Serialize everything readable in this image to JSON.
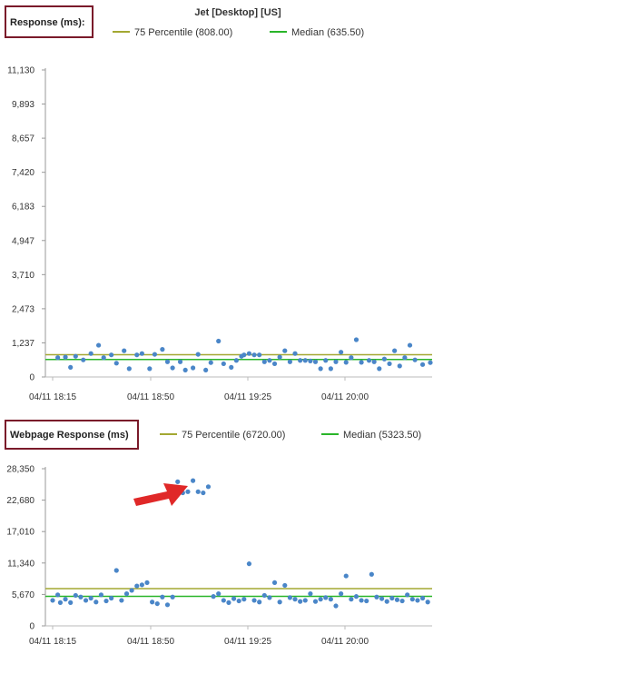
{
  "title": "Jet [Desktop] [US]",
  "colors": {
    "percentile": "#a3a832",
    "median": "#2ab52a",
    "point": "#4a86c8",
    "highlight_box": "#7a1a2a",
    "arrow": "#e02828"
  },
  "chart_data": [
    {
      "type": "scatter",
      "panel_label": "Response (ms):",
      "legend": [
        {
          "label": "75 Percentile (808.00)",
          "value": 808.0,
          "color_key": "percentile"
        },
        {
          "label": "Median (635.50)",
          "value": 635.5,
          "color_key": "median"
        }
      ],
      "ylim": [
        0,
        11130
      ],
      "yticks": [
        "0",
        "1,237",
        "2,473",
        "3,710",
        "4,947",
        "6,183",
        "7,420",
        "8,657",
        "9,893",
        "11,130"
      ],
      "xticks": [
        "04/11 18:15",
        "04/11 18:50",
        "04/11 19:25",
        "04/11 20:00"
      ],
      "xrange_minutes": [
        0,
        148
      ],
      "points_x": [
        2,
        5,
        7,
        9,
        12,
        15,
        18,
        20,
        23,
        25,
        28,
        30,
        33,
        35,
        38,
        40,
        43,
        45,
        47,
        50,
        52,
        55,
        57,
        60,
        62,
        65,
        67,
        70,
        72,
        74,
        75,
        77,
        79,
        81,
        83,
        85,
        87,
        89,
        91,
        93,
        95,
        97,
        99,
        101,
        103,
        105,
        107,
        109,
        111,
        113,
        115,
        117,
        119,
        121,
        124,
        126,
        128,
        130,
        132,
        134,
        136,
        138,
        140,
        142,
        145,
        148
      ],
      "points_y": [
        700,
        720,
        350,
        750,
        620,
        850,
        1150,
        700,
        800,
        500,
        950,
        300,
        800,
        850,
        300,
        820,
        1000,
        550,
        330,
        550,
        250,
        330,
        820,
        250,
        520,
        1300,
        480,
        350,
        600,
        750,
        800,
        850,
        800,
        800,
        550,
        600,
        480,
        720,
        950,
        550,
        850,
        600,
        600,
        580,
        550,
        300,
        600,
        300,
        550,
        900,
        530,
        700,
        1350,
        530,
        600,
        550,
        300,
        650,
        480,
        950,
        400,
        700,
        1150,
        620,
        450,
        520
      ]
    },
    {
      "type": "scatter",
      "panel_label": "Webpage Response (ms)",
      "legend": [
        {
          "label": "75 Percentile (6720.00)",
          "value": 6720.0,
          "color_key": "percentile"
        },
        {
          "label": "Median (5323.50)",
          "value": 5323.5,
          "color_key": "median"
        }
      ],
      "ylim": [
        0,
        28350
      ],
      "yticks": [
        "0",
        "5,670",
        "11,340",
        "17,010",
        "22,680",
        "28,350"
      ],
      "xticks": [
        "04/11 18:15",
        "04/11 18:50",
        "04/11 19:25",
        "04/11 20:00"
      ],
      "xrange_minutes": [
        0,
        148
      ],
      "points_x": [
        0,
        2,
        3,
        5,
        7,
        9,
        11,
        13,
        15,
        17,
        19,
        21,
        23,
        25,
        27,
        29,
        31,
        33,
        35,
        37,
        39,
        41,
        43,
        45,
        47,
        49,
        51,
        53,
        55,
        57,
        59,
        61,
        63,
        65,
        67,
        69,
        71,
        73,
        75,
        77,
        79,
        81,
        83,
        85,
        87,
        89,
        91,
        93,
        95,
        97,
        99,
        101,
        103,
        105,
        107,
        109,
        111,
        113,
        115,
        117,
        119,
        121,
        123,
        125,
        127,
        129,
        131,
        133,
        135,
        137,
        139,
        141,
        143,
        145,
        147
      ],
      "points_y": [
        4600,
        5600,
        4200,
        4800,
        4200,
        5500,
        5200,
        4600,
        5000,
        4300,
        5600,
        4500,
        5000,
        10000,
        4600,
        5800,
        6400,
        7200,
        7400,
        7800,
        4300,
        4000,
        5200,
        3800,
        5200,
        26000,
        24000,
        24200,
        26200,
        24200,
        24000,
        25100,
        5300,
        5800,
        4600,
        4200,
        4900,
        4500,
        4800,
        11200,
        4600,
        4300,
        5500,
        5100,
        7800,
        4300,
        7300,
        5100,
        4800,
        4400,
        4600,
        5800,
        4400,
        4800,
        5100,
        4800,
        3600,
        5800,
        9000,
        4800,
        5300,
        4600,
        4500,
        9300,
        5200,
        4900,
        4400,
        5000,
        4700,
        4500,
        5600,
        4800,
        4600,
        5000,
        4300
      ]
    }
  ]
}
